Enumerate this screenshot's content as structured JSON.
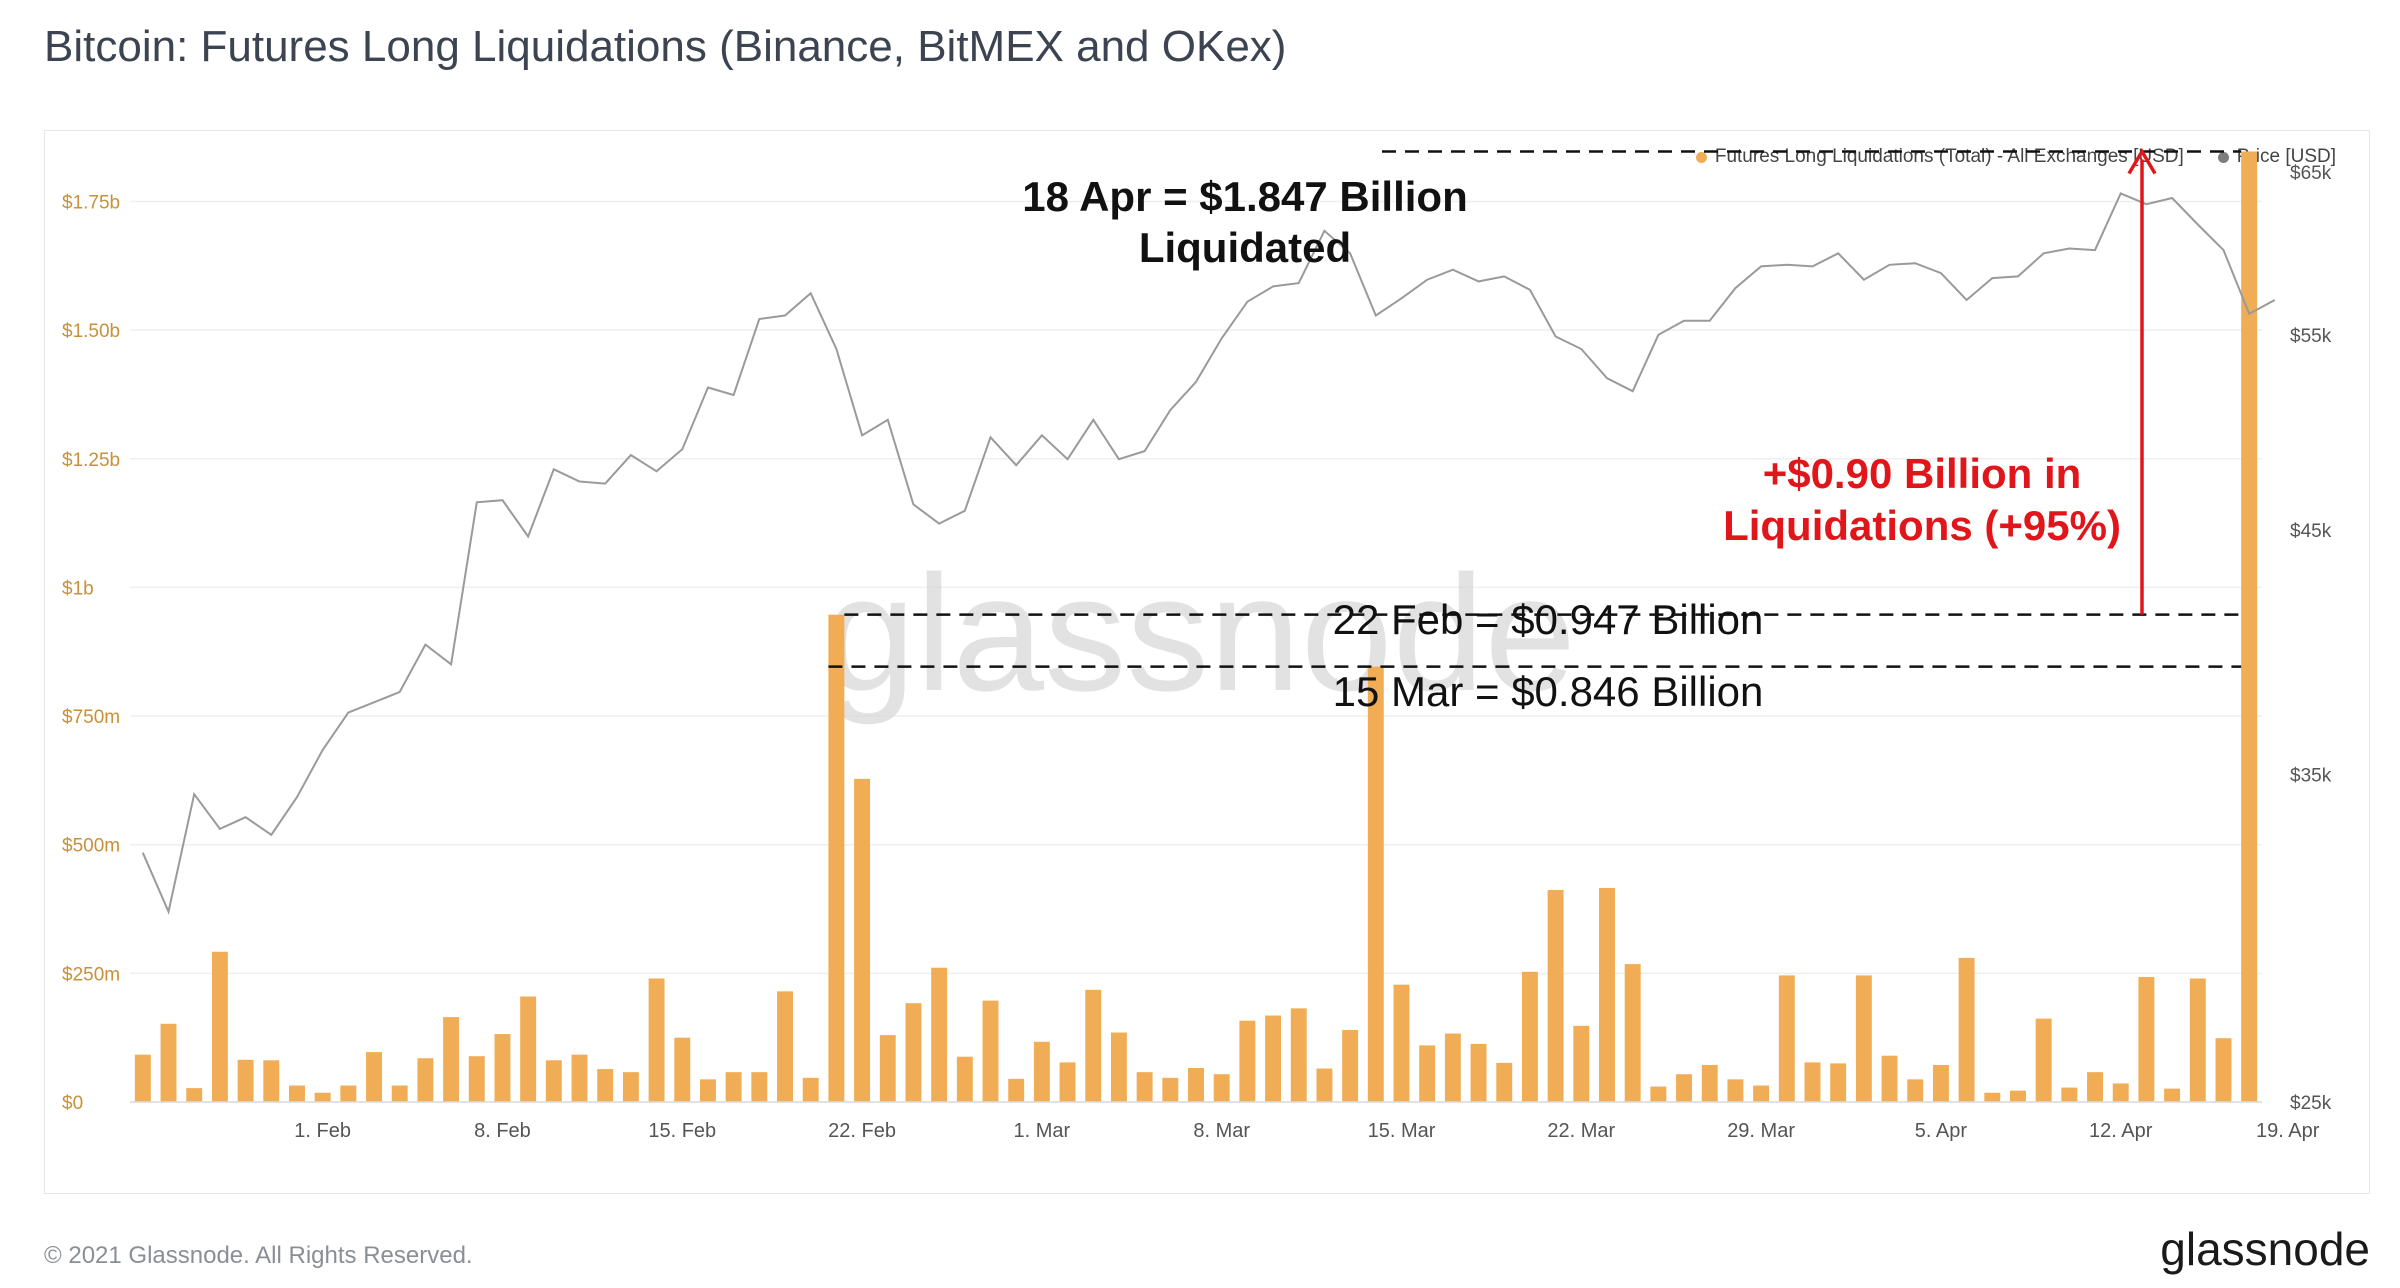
{
  "title": "Bitcoin: Futures Long Liquidations (Binance, BitMEX and OKex)",
  "footer": "© 2021 Glassnode. All Rights Reserved.",
  "brand": "glassnode",
  "watermark": "glassnode",
  "colors": {
    "bars": "#f0ad55",
    "price": "#9a9a9a",
    "annotation": "#e0161b",
    "left_axis": "#c8903a",
    "grid": "#efefef"
  },
  "legend": [
    {
      "label": "Futures Long Liquidations (Total) - All Exchanges [USD]",
      "color": "#f0ad55"
    },
    {
      "label": "Price [USD]",
      "color": "#7d7d7d"
    }
  ],
  "annotations": {
    "peak_line1": "18 Apr = $1.847 Billion",
    "peak_line2": "Liquidated",
    "feb22": "22 Feb = $0.947 Billion",
    "mar15": "15 Mar = $0.846 Billion",
    "increase_line1": "+$0.90 Billion in",
    "increase_line2": "Liquidations (+95%)"
  },
  "chart_data": {
    "type": "bar",
    "x_start": "2021-01-25",
    "x_end": "2021-04-19",
    "x_ticks": [
      "1. Feb",
      "8. Feb",
      "15. Feb",
      "22. Feb",
      "1. Mar",
      "8. Mar",
      "15. Mar",
      "22. Mar",
      "29. Mar",
      "5. Apr",
      "12. Apr",
      "19. Apr"
    ],
    "y_left": {
      "label": "",
      "ticks": [
        "$0",
        "$250m",
        "$500m",
        "$750m",
        "$1b",
        "$1.25b",
        "$1.50b",
        "$1.75b"
      ],
      "ylim": [
        0,
        1850000000
      ]
    },
    "y_right": {
      "label": "",
      "ticks": [
        "$25k",
        "$35k",
        "$45k",
        "$55k",
        "$65k"
      ],
      "ylim": [
        25000,
        66500
      ],
      "scale": "log"
    },
    "series": [
      {
        "name": "Futures Long Liquidations (Total) - All Exchanges [USD]",
        "type": "bar",
        "values": [
          92000000,
          152000000,
          27000000,
          292000000,
          82000000,
          81000000,
          32000000,
          18000000,
          32000000,
          97000000,
          32000000,
          85000000,
          165000000,
          89000000,
          132000000,
          205000000,
          81000000,
          92000000,
          64000000,
          58000000,
          240000000,
          125000000,
          44000000,
          58000000,
          58000000,
          215000000,
          47000000,
          947000000,
          628000000,
          130000000,
          192000000,
          261000000,
          88000000,
          197000000,
          45000000,
          117000000,
          77000000,
          218000000,
          135000000,
          58000000,
          47000000,
          66000000,
          54000000,
          158000000,
          168000000,
          182000000,
          65000000,
          140000000,
          846000000,
          228000000,
          110000000,
          133000000,
          113000000,
          76000000,
          253000000,
          412000000,
          148000000,
          416000000,
          268000000,
          30000000,
          54000000,
          72000000,
          44000000,
          32000000,
          246000000,
          77000000,
          75000000,
          246000000,
          90000000,
          44000000,
          72000000,
          280000000,
          18000000,
          22000000,
          162000000,
          28000000,
          58000000,
          36000000,
          243000000,
          26000000,
          240000000,
          124000000,
          1847000000
        ]
      },
      {
        "name": "Price [USD]",
        "type": "line",
        "values": [
          32300,
          30400,
          34300,
          33100,
          33500,
          32900,
          34200,
          35900,
          37300,
          37700,
          38100,
          40000,
          39200,
          46300,
          46400,
          44700,
          47900,
          47300,
          47200,
          48600,
          47800,
          48900,
          52100,
          51700,
          55900,
          56100,
          57400,
          54200,
          49600,
          50400,
          46200,
          45300,
          45900,
          49500,
          48100,
          49600,
          48400,
          50400,
          48400,
          48800,
          50900,
          52400,
          54800,
          56900,
          57800,
          58000,
          61200,
          59800,
          56100,
          57100,
          58200,
          58800,
          58100,
          58400,
          57600,
          54900,
          54200,
          52600,
          51900,
          55000,
          55800,
          55800,
          57700,
          59000,
          59100,
          59000,
          59800,
          58200,
          59100,
          59200,
          58600,
          57000,
          58300,
          58400,
          59800,
          60100,
          60000,
          63600,
          62900,
          63300,
          61600,
          60000,
          56200,
          57000
        ]
      }
    ]
  }
}
